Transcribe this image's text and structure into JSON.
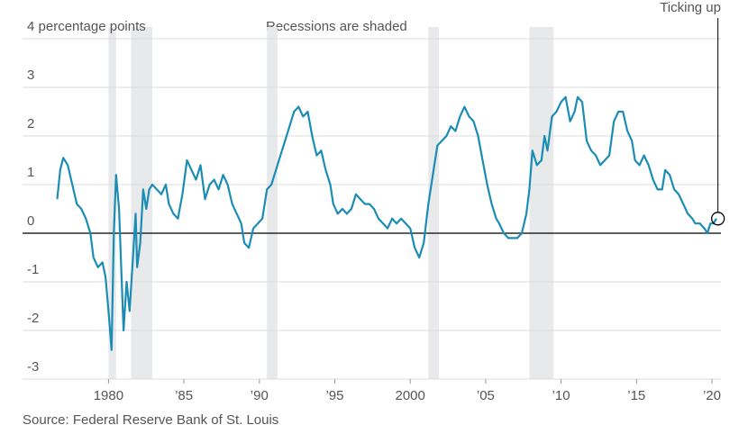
{
  "chart_data": {
    "type": "line",
    "annotations": {
      "recessions_note": "Recessions are shaded",
      "callout": "Ticking up",
      "callout_point": {
        "x": 2020.4,
        "y": 0.3
      }
    },
    "source": "Source: Federal Reserve Bank of St. Louis",
    "color": "#1b8db5",
    "grid": true,
    "xlim": [
      1974.3,
      2020.6
    ],
    "ylim": [
      -3,
      4
    ],
    "yticks": [
      -3,
      -2,
      -1,
      0,
      1,
      2,
      3,
      {
        "value": 4,
        "label": "4 percentage points"
      }
    ],
    "xticks": [
      1980,
      {
        "value": 1985,
        "label": "’85"
      },
      {
        "value": 1990,
        "label": "’90"
      },
      {
        "value": 1995,
        "label": "’95"
      },
      2000,
      {
        "value": 2005,
        "label": "’05"
      },
      {
        "value": 2010,
        "label": "’10"
      },
      {
        "value": 2015,
        "label": "’15"
      },
      {
        "value": 2020,
        "label": "’20"
      }
    ],
    "recessions": [
      [
        1980.0,
        1980.5
      ],
      [
        1981.5,
        1982.9
      ],
      [
        1990.5,
        1991.2
      ],
      [
        2001.2,
        2001.9
      ],
      [
        2007.9,
        2009.5
      ]
    ],
    "x": [
      1976.6,
      1976.8,
      1977.0,
      1977.3,
      1977.6,
      1977.9,
      1978.2,
      1978.5,
      1978.8,
      1979.0,
      1979.3,
      1979.6,
      1979.8,
      1980.0,
      1980.2,
      1980.35,
      1980.5,
      1980.7,
      1980.9,
      1981.0,
      1981.2,
      1981.4,
      1981.6,
      1981.8,
      1981.9,
      1982.1,
      1982.3,
      1982.5,
      1982.7,
      1982.9,
      1983.2,
      1983.5,
      1983.8,
      1984.0,
      1984.3,
      1984.6,
      1984.9,
      1985.2,
      1985.5,
      1985.8,
      1986.1,
      1986.4,
      1986.7,
      1987.0,
      1987.3,
      1987.6,
      1987.9,
      1988.2,
      1988.5,
      1988.8,
      1989.0,
      1989.3,
      1989.6,
      1989.9,
      1990.2,
      1990.5,
      1990.8,
      1991.1,
      1991.4,
      1991.7,
      1992.0,
      1992.3,
      1992.6,
      1992.9,
      1993.2,
      1993.5,
      1993.8,
      1994.1,
      1994.4,
      1994.7,
      1994.9,
      1995.2,
      1995.5,
      1995.8,
      1996.1,
      1996.4,
      1996.7,
      1997.0,
      1997.3,
      1997.6,
      1997.9,
      1998.2,
      1998.5,
      1998.8,
      1999.1,
      1999.4,
      1999.7,
      2000.0,
      2000.3,
      2000.6,
      2000.9,
      2001.2,
      2001.5,
      2001.8,
      2002.1,
      2002.4,
      2002.7,
      2003.0,
      2003.3,
      2003.6,
      2003.9,
      2004.2,
      2004.5,
      2004.8,
      2005.1,
      2005.4,
      2005.7,
      2005.9,
      2006.2,
      2006.5,
      2006.8,
      2007.1,
      2007.4,
      2007.7,
      2007.9,
      2008.1,
      2008.4,
      2008.7,
      2008.9,
      2009.1,
      2009.4,
      2009.7,
      2010.0,
      2010.3,
      2010.6,
      2010.9,
      2011.1,
      2011.4,
      2011.7,
      2012.0,
      2012.3,
      2012.6,
      2012.9,
      2013.2,
      2013.5,
      2013.8,
      2014.1,
      2014.4,
      2014.7,
      2014.9,
      2015.2,
      2015.5,
      2015.8,
      2016.1,
      2016.4,
      2016.7,
      2016.9,
      2017.2,
      2017.5,
      2017.8,
      2018.1,
      2018.4,
      2018.7,
      2018.9,
      2019.2,
      2019.5,
      2019.7,
      2019.9,
      2020.1,
      2020.3
    ],
    "values": [
      0.7,
      1.3,
      1.55,
      1.4,
      1.0,
      0.6,
      0.5,
      0.3,
      0.0,
      -0.5,
      -0.7,
      -0.6,
      -0.9,
      -1.6,
      -2.4,
      0.0,
      1.2,
      0.5,
      -1.2,
      -2.0,
      -1.0,
      -1.6,
      -0.6,
      0.4,
      -0.7,
      -0.2,
      0.9,
      0.5,
      0.9,
      1.0,
      0.9,
      0.8,
      1.0,
      0.6,
      0.4,
      0.3,
      0.8,
      1.5,
      1.3,
      1.1,
      1.4,
      0.7,
      1.0,
      1.1,
      0.9,
      1.2,
      1.0,
      0.6,
      0.4,
      0.2,
      -0.2,
      -0.3,
      0.1,
      0.2,
      0.3,
      0.9,
      1.0,
      1.3,
      1.6,
      1.9,
      2.2,
      2.5,
      2.6,
      2.4,
      2.5,
      2.0,
      1.6,
      1.7,
      1.3,
      1.0,
      0.6,
      0.4,
      0.5,
      0.4,
      0.5,
      0.8,
      0.7,
      0.6,
      0.6,
      0.5,
      0.3,
      0.2,
      0.1,
      0.3,
      0.2,
      0.3,
      0.2,
      0.1,
      -0.3,
      -0.5,
      -0.2,
      0.6,
      1.2,
      1.8,
      1.9,
      2.0,
      2.2,
      2.1,
      2.4,
      2.6,
      2.4,
      2.3,
      2.0,
      1.5,
      1.0,
      0.6,
      0.3,
      0.2,
      0.0,
      -0.1,
      -0.1,
      -0.1,
      0.0,
      0.4,
      0.9,
      1.7,
      1.4,
      1.5,
      2.0,
      1.7,
      2.4,
      2.5,
      2.7,
      2.8,
      2.3,
      2.5,
      2.8,
      2.7,
      1.9,
      1.7,
      1.6,
      1.4,
      1.5,
      1.6,
      2.3,
      2.5,
      2.5,
      2.1,
      1.9,
      1.5,
      1.4,
      1.6,
      1.4,
      1.1,
      0.9,
      0.9,
      1.3,
      1.2,
      0.9,
      0.8,
      0.6,
      0.4,
      0.3,
      0.2,
      0.2,
      0.1,
      0.0,
      0.2,
      0.2,
      0.3
    ]
  }
}
